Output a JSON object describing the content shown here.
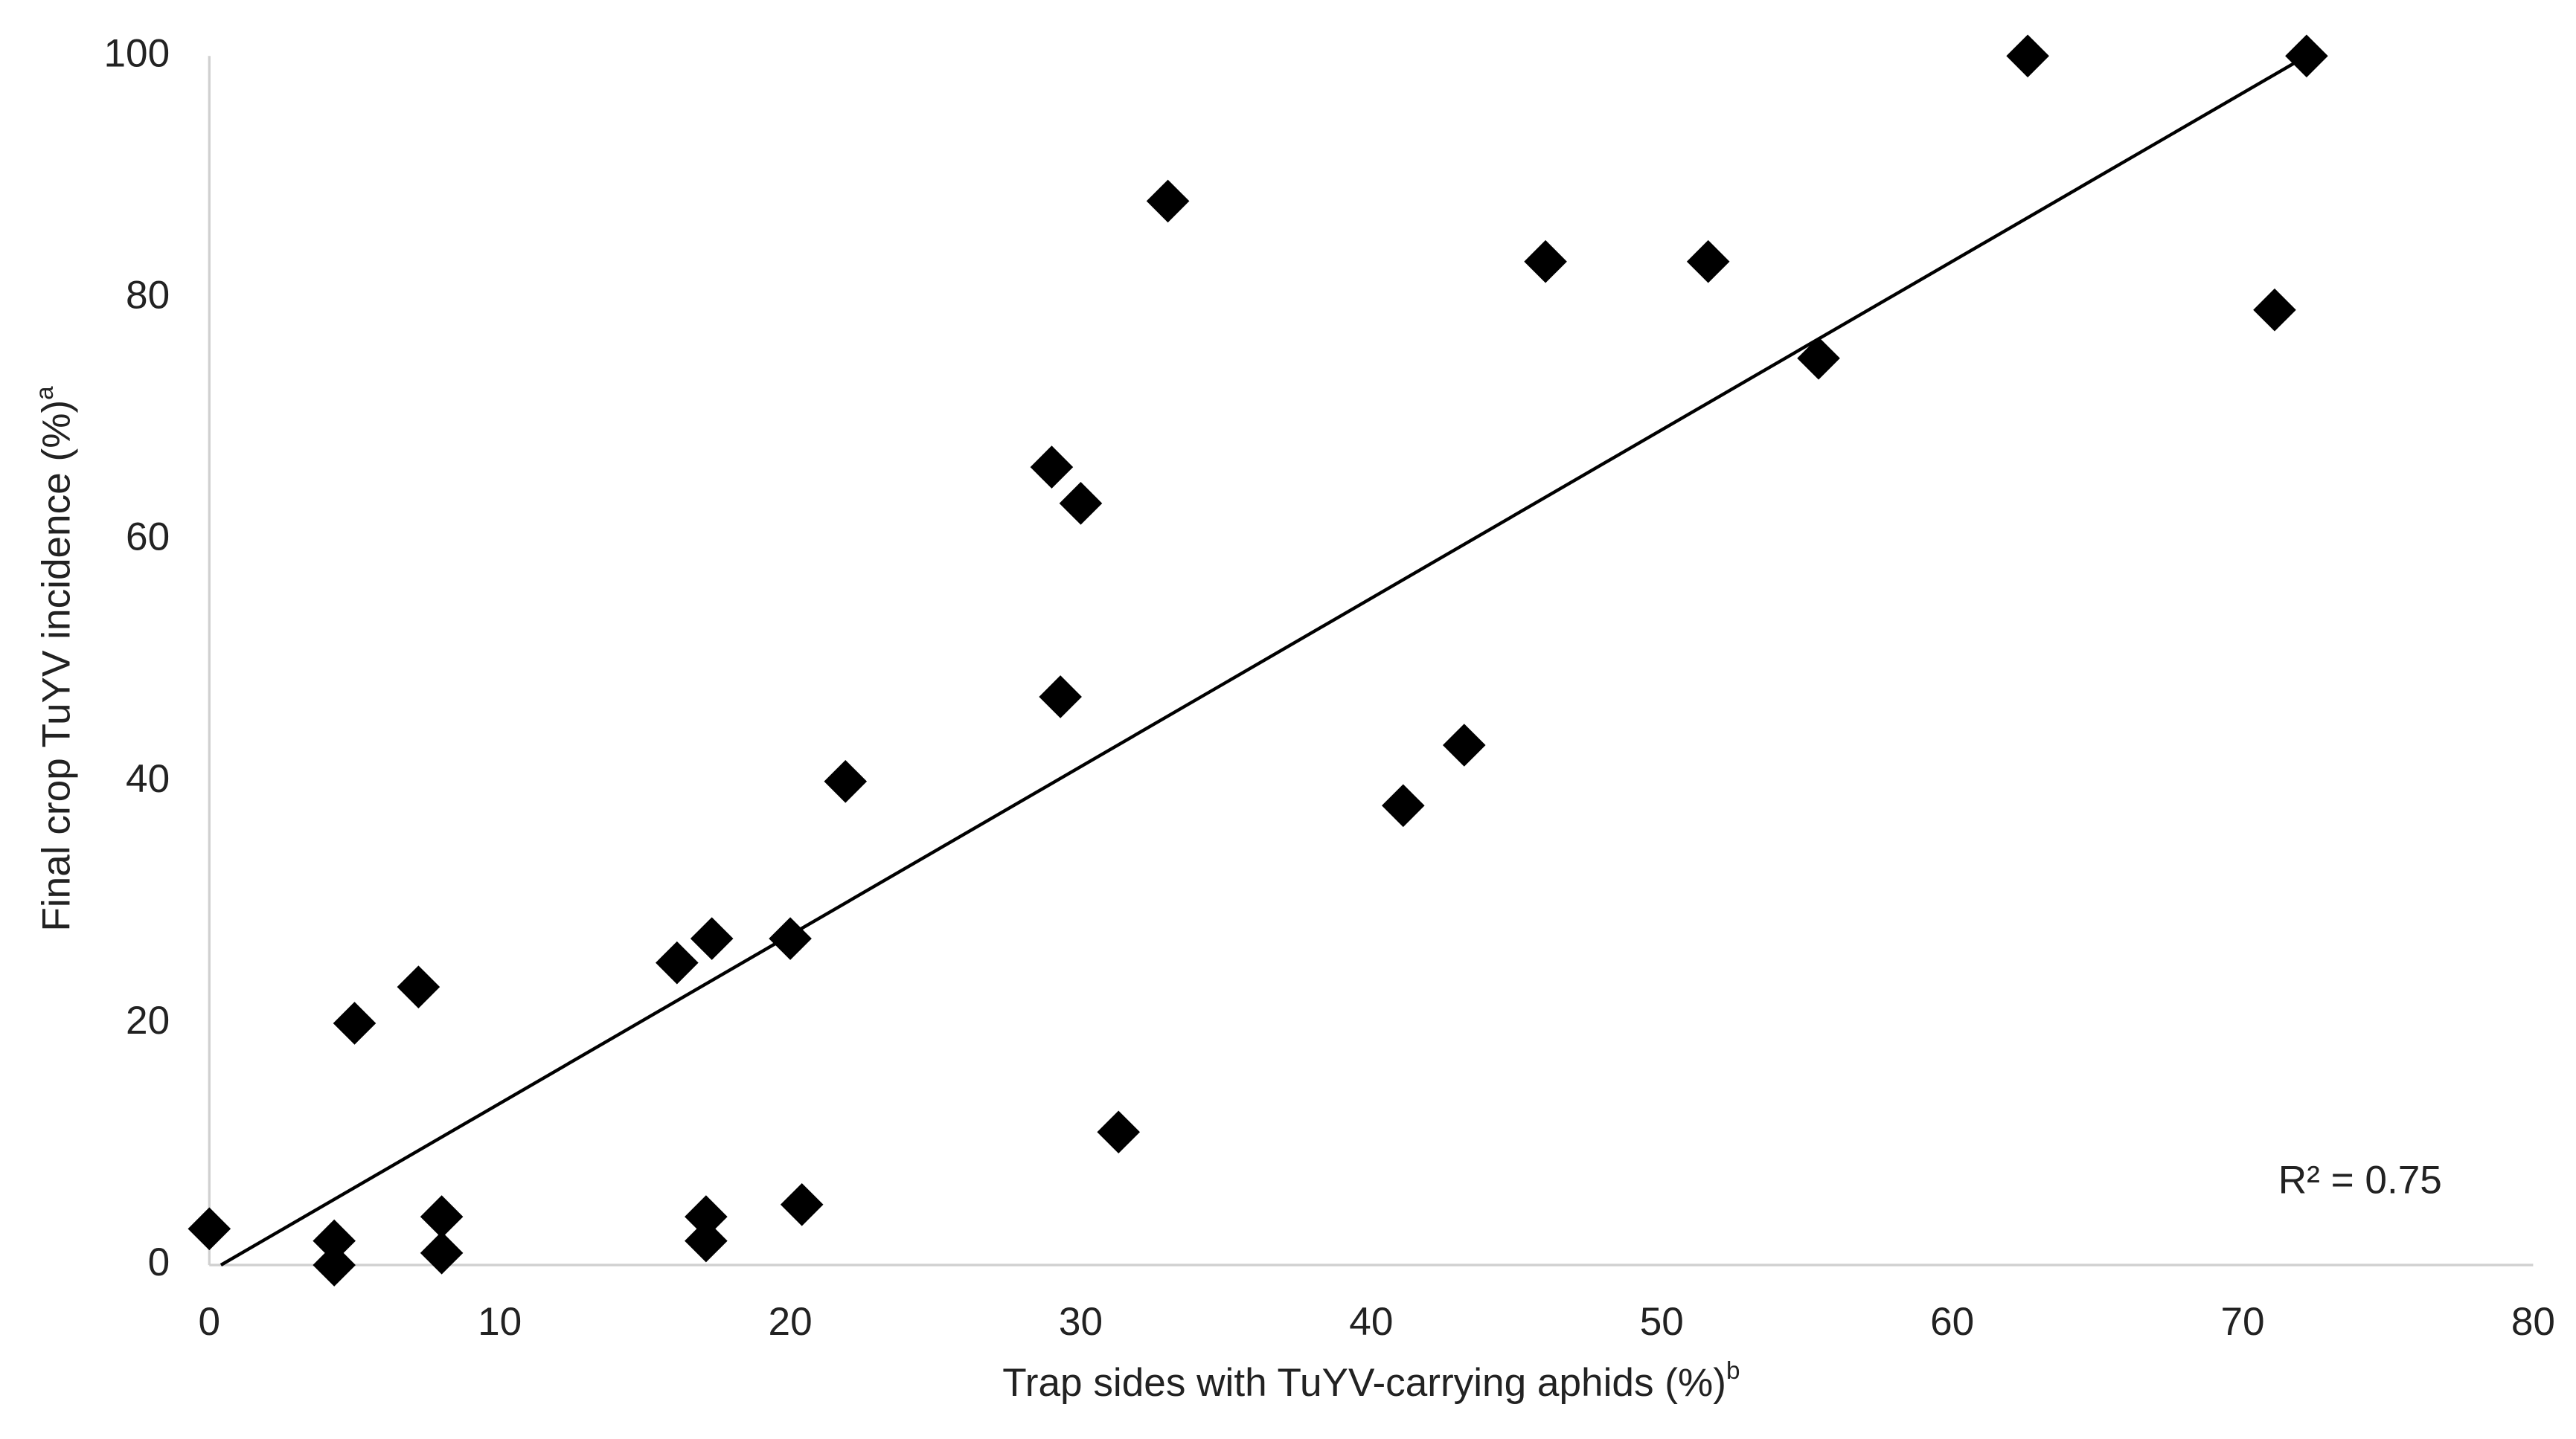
{
  "chart_data": {
    "type": "scatter",
    "x_label": "Trap sides with TuYV-carrying aphids (%)",
    "x_label_note": "b",
    "y_label": "Final crop TuYV incidence (%)",
    "y_label_note": "a",
    "annotation": "R² = 0.75",
    "x": [
      0,
      4.3,
      4.3,
      5,
      7.2,
      8,
      8,
      16.1,
      17.3,
      17.1,
      17.1,
      20,
      20.4,
      21.9,
      29,
      30,
      29.3,
      31.3,
      33,
      41.1,
      43.2,
      46,
      51.6,
      55.4,
      62.6,
      72.2,
      71.1
    ],
    "values": [
      3,
      2,
      0,
      20,
      23,
      4,
      1,
      25,
      27,
      4,
      2,
      27,
      5,
      40,
      66,
      63,
      47,
      11,
      88,
      38,
      43,
      83,
      83,
      75,
      100,
      100,
      79
    ],
    "color": "#000000",
    "trendline": {
      "x": [
        0.4,
        72.2
      ],
      "y": [
        0,
        100
      ],
      "color": "#000000"
    },
    "xlim": [
      0,
      80
    ],
    "xticks": [
      0,
      10,
      20,
      30,
      40,
      50,
      60,
      70,
      80
    ],
    "ylim": [
      0,
      100
    ],
    "yticks": [
      0,
      20,
      40,
      60,
      80,
      100
    ],
    "grid": false
  }
}
